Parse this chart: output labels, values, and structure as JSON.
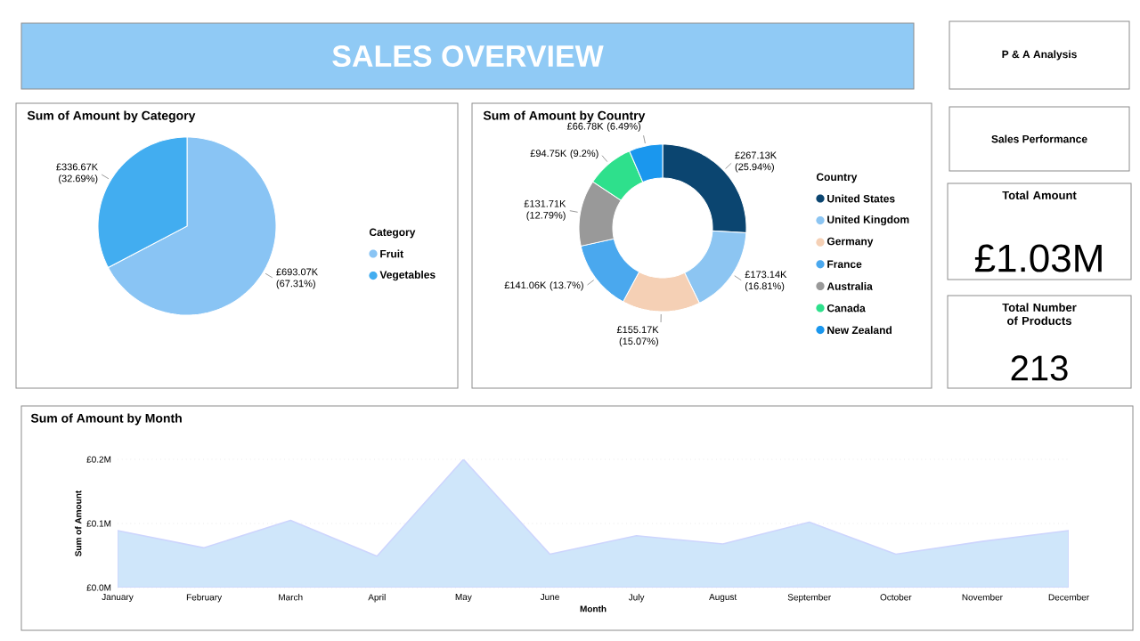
{
  "chart_data": [
    {
      "type": "other",
      "title": "SALES OVERVIEW"
    },
    {
      "type": "pie",
      "title": "Sum of Amount by Category",
      "legend_title": "Category",
      "legend": "right",
      "categories": [
        "Fruit",
        "Vegetables"
      ],
      "values": [
        693070,
        336670
      ],
      "colors": [
        "#89c4f4",
        "#42adf0"
      ],
      "value_labels": [
        "£693.07K (67.31%)",
        "£336.67K (32.69%)"
      ]
    },
    {
      "type": "donut",
      "title": "Sum of Amount by Country",
      "legend_title": "Country",
      "legend": "right",
      "categories": [
        "United States",
        "United Kingdom",
        "Germany",
        "France",
        "Australia",
        "Canada",
        "New Zealand"
      ],
      "values": [
        267130,
        173140,
        155170,
        141060,
        131710,
        94750,
        66780
      ],
      "colors": [
        "#0b4570",
        "#8cc5f2",
        "#f5d0b5",
        "#4aa8ee",
        "#999999",
        "#2ee08c",
        "#1a97ee"
      ],
      "value_labels": [
        "£267.13K (25.94%)",
        "£173.14K (16.81%)",
        "£155.17K (15.07%)",
        "£141.06K (13.7%)",
        "£131.71K (12.79%)",
        "£94.75K (9.2%)",
        "£66.78K (6.49%)"
      ]
    },
    {
      "type": "other",
      "annotations": [
        "P & A Analysis",
        "Sales Performance"
      ]
    },
    {
      "type": "other",
      "title": "Total Amount",
      "annotations": [
        "£1.03M"
      ]
    },
    {
      "type": "other",
      "title": "Total Number of Products",
      "annotations": [
        "213"
      ]
    },
    {
      "type": "area",
      "title": "Sum of Amount by Month",
      "xlabel": "Month",
      "ylabel": "Sum of Amount",
      "categories": [
        "January",
        "February",
        "March",
        "April",
        "May",
        "June",
        "July",
        "August",
        "September",
        "October",
        "November",
        "December"
      ],
      "values": [
        0.089,
        0.062,
        0.105,
        0.049,
        0.2,
        0.052,
        0.081,
        0.068,
        0.102,
        0.052,
        0.072,
        0.089
      ],
      "color": "#cfe6fa",
      "ylim": [
        0,
        0.2
      ],
      "yticks": [
        {
          "value": 0,
          "label": "£0.0M"
        },
        {
          "value": 0.1,
          "label": "£0.1M"
        },
        {
          "value": 0.2,
          "label": "£0.2M"
        }
      ],
      "grid": "y"
    }
  ]
}
